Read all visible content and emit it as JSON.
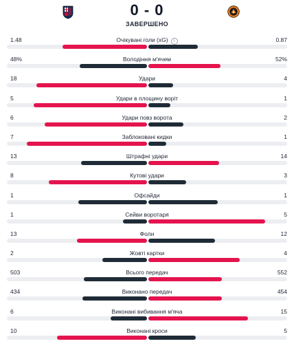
{
  "match": {
    "score": "0 - 0",
    "status": "ЗАВЕРШЕНО",
    "home_crest_icon": "bologna-crest-icon",
    "away_crest_icon": "shakhtar-crest-icon"
  },
  "colors": {
    "winner": "#e4144e",
    "loser": "#1f2b36",
    "track": "#eceef1"
  },
  "stats": [
    {
      "label": "Очікувані голи (xG)",
      "home": "1.48",
      "away": "0.87",
      "home_share": 0.603,
      "away_share": 0.355,
      "home_win": true,
      "info": true
    },
    {
      "label": "Володіння м'ячем",
      "home": "48%",
      "away": "52%",
      "home_share": 0.48,
      "away_share": 0.52,
      "home_win": false
    },
    {
      "label": "Удари",
      "home": "18",
      "away": "4",
      "home_share": 0.79,
      "away_share": 0.18,
      "home_win": true
    },
    {
      "label": "Удари в площину воріт",
      "home": "5",
      "away": "1",
      "home_share": 0.81,
      "away_share": 0.16,
      "home_win": true
    },
    {
      "label": "Удари повз ворота",
      "home": "6",
      "away": "2",
      "home_share": 0.73,
      "away_share": 0.25,
      "home_win": true
    },
    {
      "label": "Заблоковані кидки",
      "home": "7",
      "away": "1",
      "home_share": 0.86,
      "away_share": 0.13,
      "home_win": true
    },
    {
      "label": "Штрафні удари",
      "home": "13",
      "away": "14",
      "home_share": 0.47,
      "away_share": 0.51,
      "home_win": false
    },
    {
      "label": "Кутові удари",
      "home": "8",
      "away": "3",
      "home_share": 0.7,
      "away_share": 0.27,
      "home_win": true
    },
    {
      "label": "Офсайди",
      "home": "1",
      "away": "1",
      "home_share": 0.49,
      "away_share": 0.5,
      "home_win": false,
      "draw": true
    },
    {
      "label": "Сейви воротаря",
      "home": "1",
      "away": "5",
      "home_share": 0.17,
      "away_share": 0.84,
      "home_win": false
    },
    {
      "label": "Фоли",
      "home": "13",
      "away": "12",
      "home_share": 0.5,
      "away_share": 0.48,
      "home_win": true
    },
    {
      "label": "Жовті картки",
      "home": "2",
      "away": "4",
      "home_share": 0.32,
      "away_share": 0.66,
      "home_win": false
    },
    {
      "label": "Всього передач",
      "home": "503",
      "away": "552",
      "home_share": 0.45,
      "away_share": 0.53,
      "home_win": false
    },
    {
      "label": "Виконано передач",
      "home": "434",
      "away": "454",
      "home_share": 0.46,
      "away_share": 0.53,
      "home_win": false
    },
    {
      "label": "Виконані вибивання м'яча",
      "home": "6",
      "away": "15",
      "home_share": 0.26,
      "away_share": 0.72,
      "home_win": false
    },
    {
      "label": "Виконані кроси",
      "home": "10",
      "away": "5",
      "home_share": 0.64,
      "away_share": 0.34,
      "home_win": true
    }
  ]
}
